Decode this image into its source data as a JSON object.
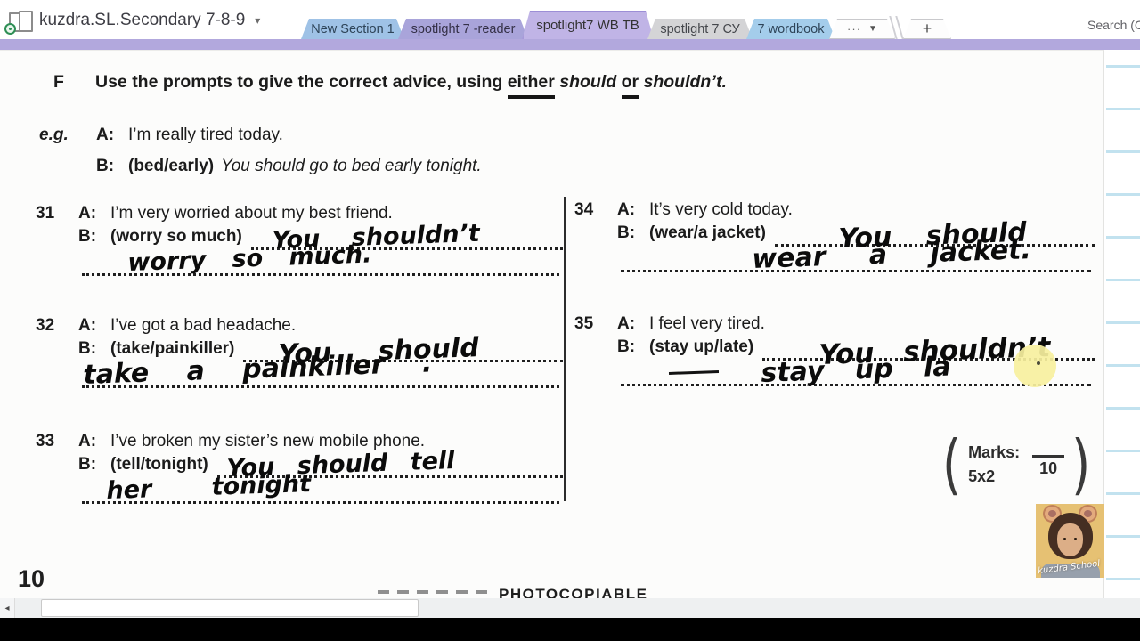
{
  "chrome": {
    "notebook_title": "kuzdra.SL.Secondary 7-8-9",
    "title_caret": "▾",
    "tabs": [
      {
        "label": "New Section 1",
        "color": "#9fc2e6"
      },
      {
        "label": "spotlight 7 -reader",
        "color": "#a9a4da"
      },
      {
        "label": "spotlight7 WB TB",
        "color": "#c0b4e6",
        "active": true
      },
      {
        "label": "spotlight 7 СУ",
        "color": "#d4d4d6"
      },
      {
        "label": "7 wordbook",
        "color": "#a4cdeb"
      }
    ],
    "overflow_tab": {
      "dots": "···",
      "caret": "▼"
    },
    "add_tab_label": "+",
    "search_placeholder": "Search (Ctrl",
    "section_strip_color": "#b2a8dd"
  },
  "worksheet": {
    "heading": {
      "letter": "F",
      "pre": "Use the prompts to give the correct advice, using ",
      "either": "either",
      "sp1": " ",
      "should": "should",
      "sp2": " ",
      "or_word": "or",
      "sp3": " ",
      "shouldnt": "shouldn’t."
    },
    "labels": {
      "a": "A:",
      "b": "B:"
    },
    "example": {
      "label": "e.g.",
      "a_text": "I’m really tired today.",
      "prompt": "(bed/early)",
      "answer": "You should go to bed early tonight."
    },
    "items": [
      {
        "num": "31",
        "a_text": "I’m very worried about my best friend.",
        "prompt": "(worry so much)",
        "hw_line1": "You shouldn’t",
        "hw_line2": "worry so much."
      },
      {
        "num": "32",
        "a_text": "I’ve got a bad headache.",
        "prompt": "(take/painkiller)",
        "hw_line1": "You should",
        "hw_line2": "take a painkiller ."
      },
      {
        "num": "33",
        "a_text": "I’ve broken my sister’s new mobile phone.",
        "prompt": "(tell/tonight)",
        "hw_line1": "You should tell",
        "hw_line2": "her tonight"
      },
      {
        "num": "34",
        "a_text": "It’s very cold today.",
        "prompt": "(wear/a jacket)",
        "hw_line1": "You should",
        "hw_line2": "wear a jacket."
      },
      {
        "num": "35",
        "a_text": "I feel very tired.",
        "prompt": "(stay up/late)",
        "hw_line1": "You shouldn’t",
        "hw_line2": "stay up la"
      }
    ],
    "marks": {
      "open": "(",
      "label": "Marks:",
      "formula": "5x2",
      "total": "10",
      "close": ")"
    },
    "page_number": "10",
    "footer": "PHOTOCOPIABLE"
  },
  "scrollbar": {
    "left_arrow": "◂"
  },
  "webcam": {
    "watermark": "kuzdra School"
  }
}
